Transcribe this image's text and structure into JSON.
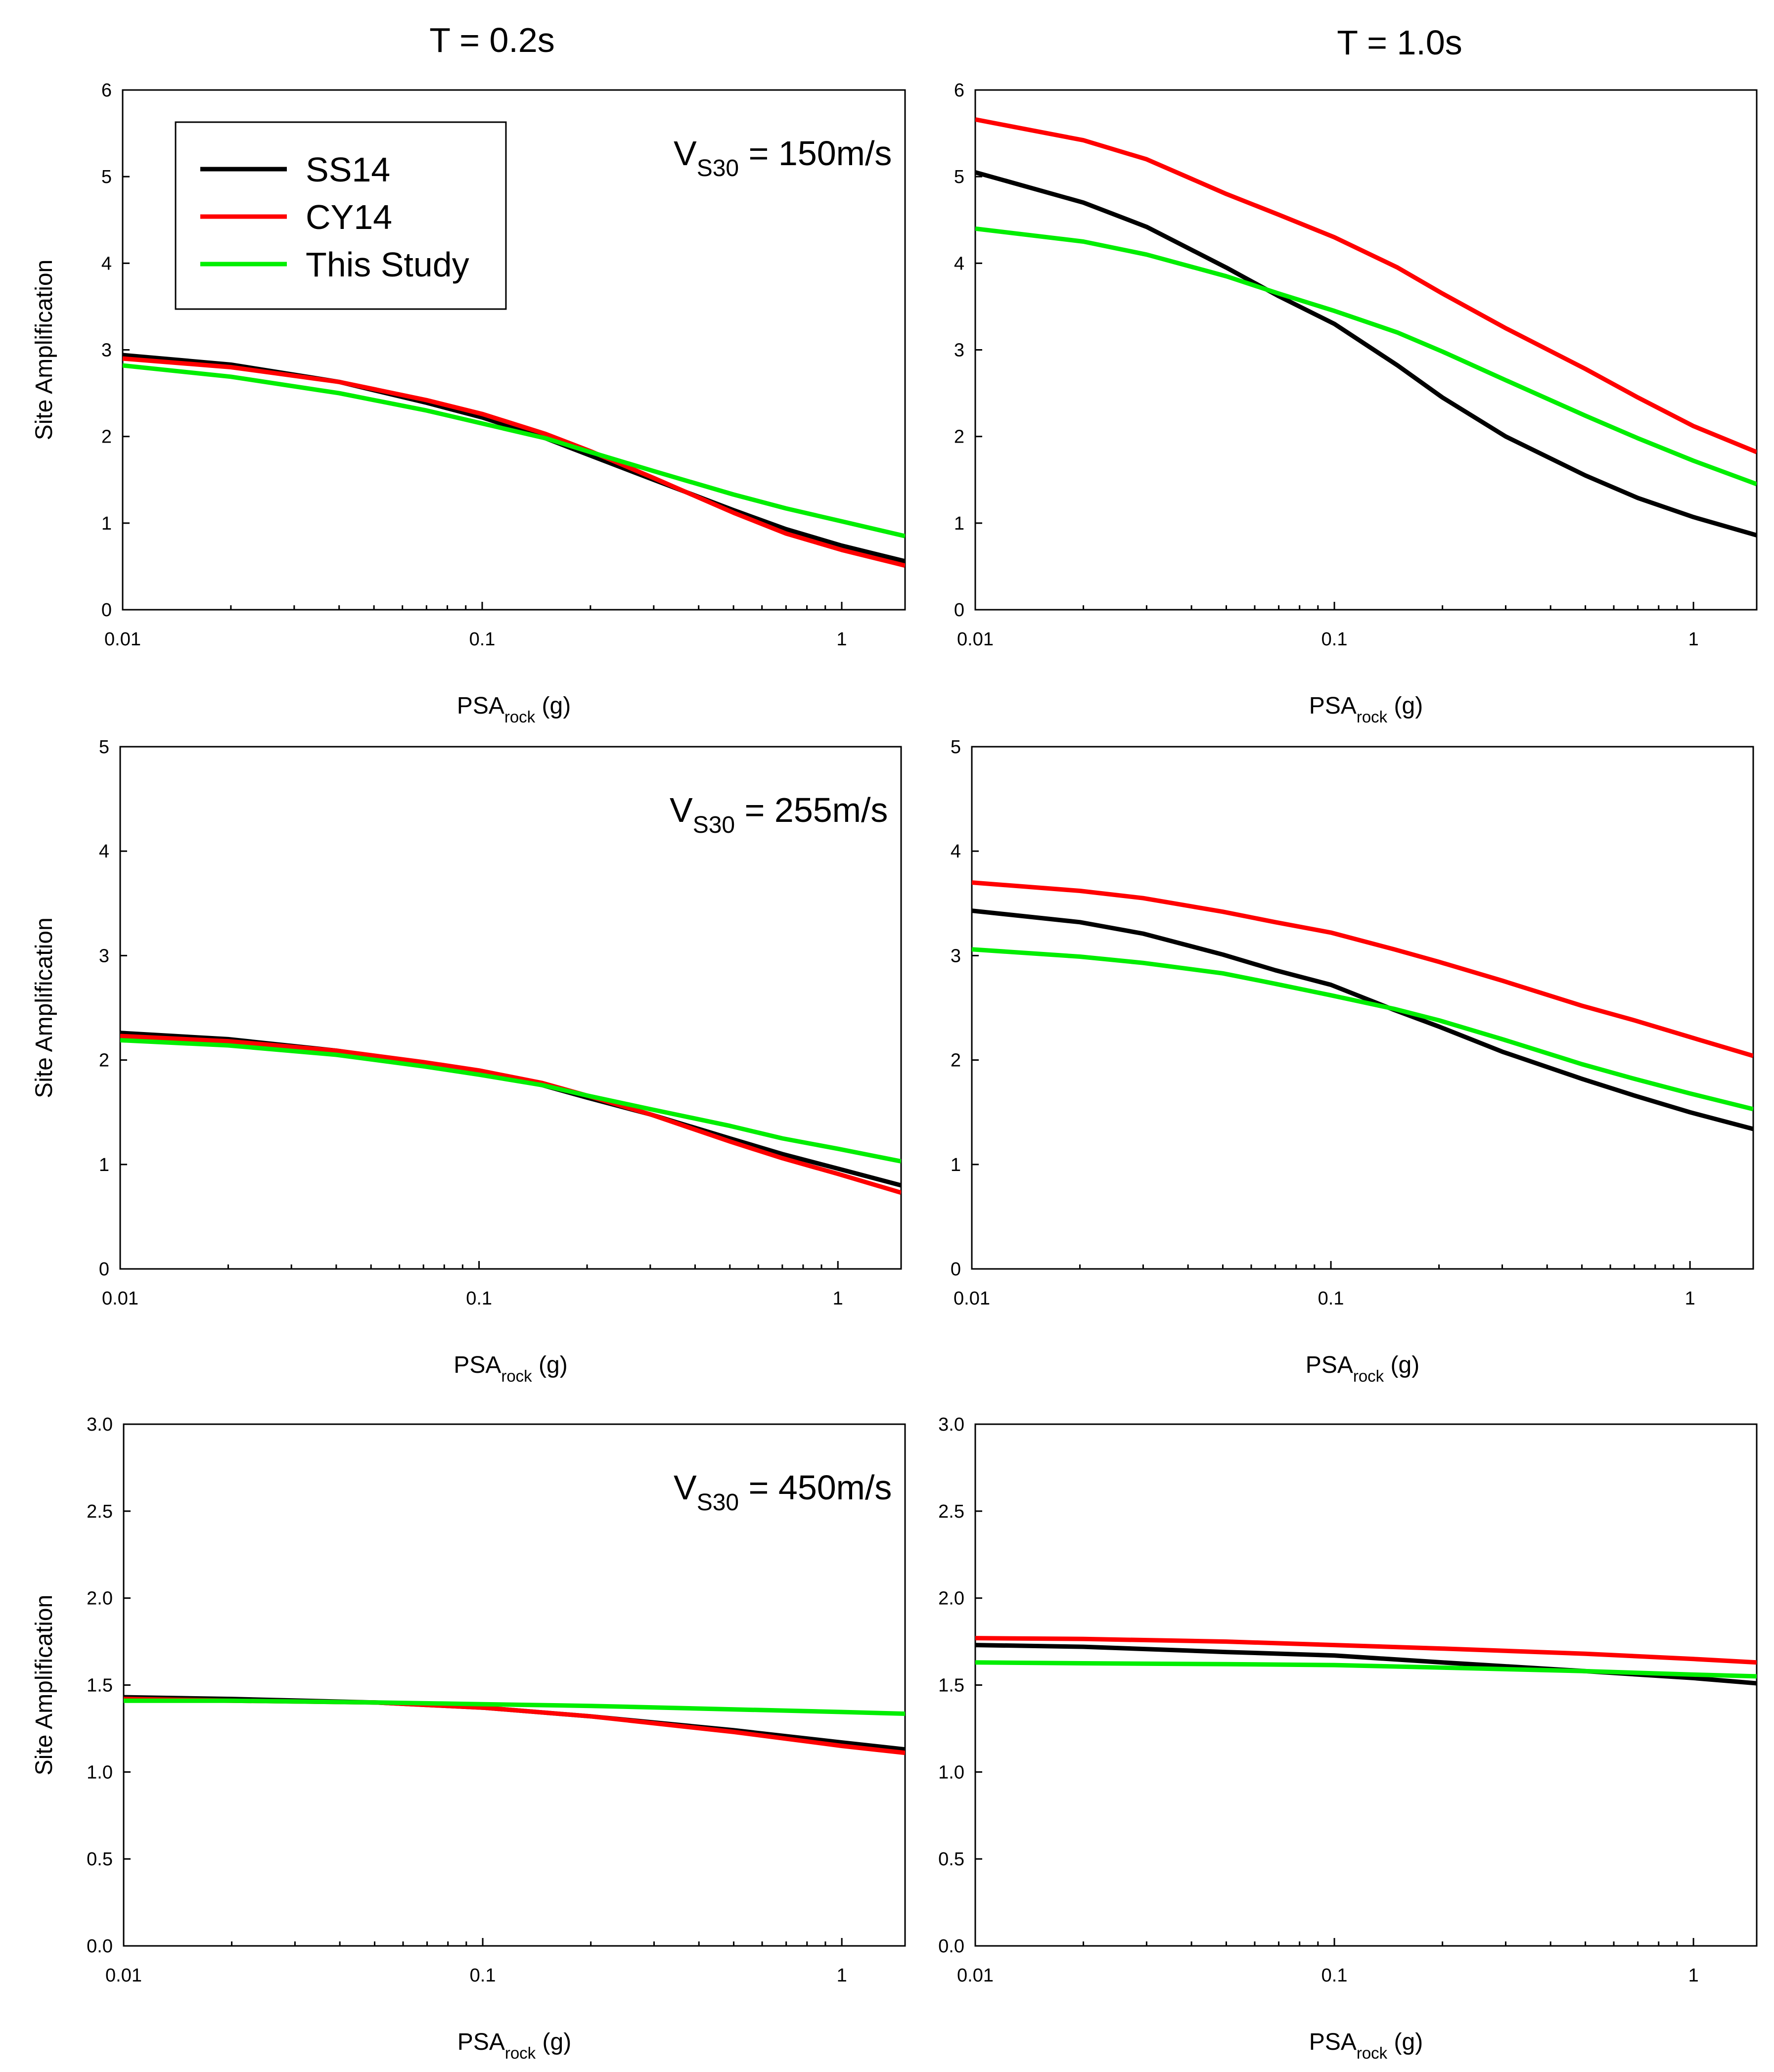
{
  "figure": {
    "col_titles": [
      "T = 0.2s",
      "T = 1.0s"
    ],
    "legend": [
      {
        "label": "SS14",
        "color": "#000000"
      },
      {
        "label": "CY14",
        "color": "#ff0000"
      },
      {
        "label": "This Study",
        "color": "#00ee00"
      }
    ],
    "annotations": [
      {
        "main": "V",
        "sub": "S30",
        "rest": " = 150m/s"
      },
      {
        "main": "V",
        "sub": "S30",
        "rest": " = 255m/s"
      },
      {
        "main": "V",
        "sub": "S30",
        "rest": " = 450m/s"
      }
    ]
  },
  "chart_data": [
    {
      "type": "line",
      "row": 0,
      "col": 0,
      "ylabel": "Site Amplification",
      "xlabel": "PSA",
      "xlabel_sub": "rock",
      "xlabel_tail": " (g)",
      "xscale": "log",
      "xlim": [
        0.01,
        1.5
      ],
      "ylim": [
        0,
        6
      ],
      "xticks": [
        0.01,
        0.1,
        1
      ],
      "xtick_labels": [
        "0.01",
        "0.1",
        "1"
      ],
      "yticks": [
        0,
        1,
        2,
        3,
        4,
        5,
        6
      ],
      "ytick_labels": [
        "0",
        "1",
        "2",
        "3",
        "4",
        "5",
        "6"
      ],
      "x": [
        0.01,
        0.02,
        0.04,
        0.07,
        0.1,
        0.15,
        0.2,
        0.3,
        0.5,
        0.7,
        1.0,
        1.5
      ],
      "series": [
        {
          "name": "SS14",
          "values": [
            2.94,
            2.83,
            2.63,
            2.39,
            2.22,
            1.98,
            1.78,
            1.5,
            1.15,
            0.93,
            0.74,
            0.56
          ]
        },
        {
          "name": "CY14",
          "values": [
            2.9,
            2.8,
            2.63,
            2.42,
            2.26,
            2.03,
            1.83,
            1.52,
            1.12,
            0.88,
            0.69,
            0.51
          ]
        },
        {
          "name": "This Study",
          "values": [
            2.82,
            2.69,
            2.5,
            2.3,
            2.15,
            1.98,
            1.82,
            1.6,
            1.33,
            1.17,
            1.02,
            0.85
          ]
        }
      ]
    },
    {
      "type": "line",
      "row": 0,
      "col": 1,
      "ylabel": "",
      "xlabel": "PSA",
      "xlabel_sub": "rock",
      "xlabel_tail": " (g)",
      "xscale": "log",
      "xlim": [
        0.01,
        1.5
      ],
      "ylim": [
        0,
        6
      ],
      "xticks": [
        0.01,
        0.1,
        1
      ],
      "xtick_labels": [
        "0.01",
        "0.1",
        "1"
      ],
      "yticks": [
        0,
        1,
        2,
        3,
        4,
        5,
        6
      ],
      "ytick_labels": [
        "0",
        "1",
        "2",
        "3",
        "4",
        "5",
        "6"
      ],
      "x": [
        0.01,
        0.02,
        0.03,
        0.05,
        0.07,
        0.1,
        0.15,
        0.2,
        0.3,
        0.5,
        0.7,
        1.0,
        1.5
      ],
      "series": [
        {
          "name": "SS14",
          "values": [
            5.05,
            4.7,
            4.42,
            3.95,
            3.62,
            3.3,
            2.82,
            2.45,
            2.0,
            1.55,
            1.29,
            1.07,
            0.86
          ]
        },
        {
          "name": "CY14",
          "values": [
            5.66,
            5.42,
            5.2,
            4.8,
            4.56,
            4.3,
            3.95,
            3.65,
            3.25,
            2.78,
            2.45,
            2.12,
            1.82
          ]
        },
        {
          "name": "This Study",
          "values": [
            4.4,
            4.25,
            4.1,
            3.85,
            3.65,
            3.45,
            3.2,
            2.98,
            2.65,
            2.24,
            1.98,
            1.72,
            1.45
          ]
        }
      ]
    },
    {
      "type": "line",
      "row": 1,
      "col": 0,
      "ylabel": "Site Amplification",
      "xlabel": "PSA",
      "xlabel_sub": "rock",
      "xlabel_tail": " (g)",
      "xscale": "log",
      "xlim": [
        0.01,
        1.5
      ],
      "ylim": [
        0,
        5
      ],
      "xticks": [
        0.01,
        0.1,
        1
      ],
      "xtick_labels": [
        "0.01",
        "0.1",
        "1"
      ],
      "yticks": [
        0,
        1,
        2,
        3,
        4,
        5
      ],
      "ytick_labels": [
        "0",
        "1",
        "2",
        "3",
        "4",
        "5"
      ],
      "x": [
        0.01,
        0.02,
        0.04,
        0.07,
        0.1,
        0.15,
        0.2,
        0.3,
        0.5,
        0.7,
        1.0,
        1.5
      ],
      "series": [
        {
          "name": "SS14",
          "values": [
            2.26,
            2.2,
            2.09,
            1.97,
            1.88,
            1.76,
            1.64,
            1.48,
            1.25,
            1.1,
            0.96,
            0.8
          ]
        },
        {
          "name": "CY14",
          "values": [
            2.23,
            2.18,
            2.09,
            1.98,
            1.9,
            1.78,
            1.66,
            1.48,
            1.22,
            1.06,
            0.91,
            0.73
          ]
        },
        {
          "name": "This Study",
          "values": [
            2.19,
            2.14,
            2.05,
            1.94,
            1.86,
            1.76,
            1.66,
            1.53,
            1.37,
            1.25,
            1.15,
            1.03
          ]
        }
      ]
    },
    {
      "type": "line",
      "row": 1,
      "col": 1,
      "ylabel": "",
      "xlabel": "PSA",
      "xlabel_sub": "rock",
      "xlabel_tail": " (g)",
      "xscale": "log",
      "xlim": [
        0.01,
        1.5
      ],
      "ylim": [
        0,
        5
      ],
      "xticks": [
        0.01,
        0.1,
        1
      ],
      "xtick_labels": [
        "0.01",
        "0.1",
        "1"
      ],
      "yticks": [
        0,
        1,
        2,
        3,
        4,
        5
      ],
      "ytick_labels": [
        "0",
        "1",
        "2",
        "3",
        "4",
        "5"
      ],
      "x": [
        0.01,
        0.02,
        0.03,
        0.05,
        0.07,
        0.1,
        0.15,
        0.2,
        0.3,
        0.5,
        0.7,
        1.0,
        1.5
      ],
      "series": [
        {
          "name": "SS14",
          "values": [
            3.43,
            3.32,
            3.21,
            3.01,
            2.86,
            2.72,
            2.48,
            2.32,
            2.08,
            1.82,
            1.66,
            1.5,
            1.34
          ]
        },
        {
          "name": "CY14",
          "values": [
            3.7,
            3.62,
            3.55,
            3.42,
            3.32,
            3.22,
            3.06,
            2.94,
            2.76,
            2.52,
            2.38,
            2.22,
            2.04
          ]
        },
        {
          "name": "This Study",
          "values": [
            3.06,
            2.99,
            2.93,
            2.83,
            2.73,
            2.62,
            2.49,
            2.38,
            2.2,
            1.96,
            1.82,
            1.68,
            1.53
          ]
        }
      ]
    },
    {
      "type": "line",
      "row": 2,
      "col": 0,
      "ylabel": "Site Amplification",
      "xlabel": "PSA",
      "xlabel_sub": "rock",
      "xlabel_tail": " (g)",
      "xscale": "log",
      "xlim": [
        0.01,
        1.5
      ],
      "ylim": [
        0,
        3
      ],
      "xticks": [
        0.01,
        0.1,
        1
      ],
      "xtick_labels": [
        "0.01",
        "0.1",
        "1"
      ],
      "yticks": [
        0,
        0.5,
        1,
        1.5,
        2,
        2.5,
        3
      ],
      "ytick_labels": [
        "0.0",
        "0.5",
        "1.0",
        "1.5",
        "2.0",
        "2.5",
        "3.0"
      ],
      "x": [
        0.01,
        0.02,
        0.05,
        0.1,
        0.2,
        0.5,
        1.0,
        1.5
      ],
      "series": [
        {
          "name": "SS14",
          "values": [
            1.43,
            1.42,
            1.4,
            1.37,
            1.32,
            1.24,
            1.17,
            1.13
          ]
        },
        {
          "name": "CY14",
          "values": [
            1.42,
            1.41,
            1.4,
            1.37,
            1.32,
            1.23,
            1.15,
            1.11
          ]
        },
        {
          "name": "This Study",
          "values": [
            1.41,
            1.41,
            1.4,
            1.39,
            1.38,
            1.36,
            1.345,
            1.335
          ]
        }
      ]
    },
    {
      "type": "line",
      "row": 2,
      "col": 1,
      "ylabel": "",
      "xlabel": "PSA",
      "xlabel_sub": "rock",
      "xlabel_tail": " (g)",
      "xscale": "log",
      "xlim": [
        0.01,
        1.5
      ],
      "ylim": [
        0,
        3
      ],
      "xticks": [
        0.01,
        0.1,
        1
      ],
      "xtick_labels": [
        "0.01",
        "0.1",
        "1"
      ],
      "yticks": [
        0,
        0.5,
        1,
        1.5,
        2,
        2.5,
        3
      ],
      "ytick_labels": [
        "0.0",
        "0.5",
        "1.0",
        "1.5",
        "2.0",
        "2.5",
        "3.0"
      ],
      "x": [
        0.01,
        0.02,
        0.05,
        0.1,
        0.2,
        0.5,
        1.0,
        1.5
      ],
      "series": [
        {
          "name": "SS14",
          "values": [
            1.73,
            1.72,
            1.69,
            1.67,
            1.63,
            1.58,
            1.54,
            1.51
          ]
        },
        {
          "name": "CY14",
          "values": [
            1.77,
            1.765,
            1.75,
            1.73,
            1.71,
            1.68,
            1.65,
            1.63
          ]
        },
        {
          "name": "This Study",
          "values": [
            1.63,
            1.625,
            1.62,
            1.615,
            1.6,
            1.58,
            1.56,
            1.55
          ]
        }
      ]
    }
  ]
}
